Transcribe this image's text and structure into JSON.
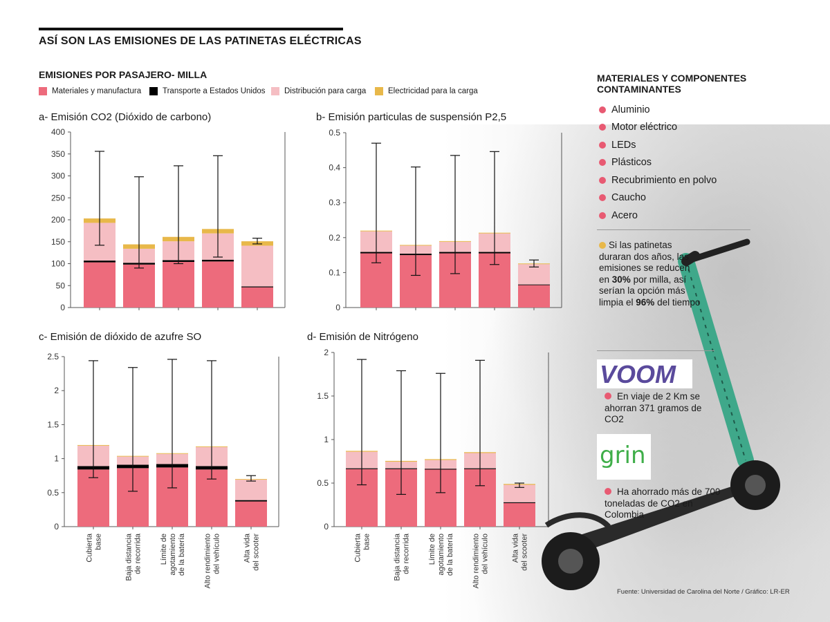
{
  "header": {
    "title": "ASÍ SON LAS EMISIONES DE LAS PATINETAS ELÉCTRICAS",
    "subtitle": "EMISIONES POR PASAJERO- MILLA"
  },
  "legend": [
    {
      "label": "Materiales y manufactura",
      "color": "#ed6b7c"
    },
    {
      "label": "Transporte a Estados Unidos",
      "color": "#000000"
    },
    {
      "label": "Distribución para carga",
      "color": "#f5bec3"
    },
    {
      "label": "Electricidad para la carga",
      "color": "#e8b84a"
    }
  ],
  "chart_data": [
    {
      "type": "bar",
      "stacked": true,
      "title": "a- Emisión CO2 (Dióxido de carbono)",
      "ylim": [
        0,
        400
      ],
      "yticks": [
        "0",
        "50",
        "100",
        "150",
        "200",
        "250",
        "300",
        "350",
        "400"
      ],
      "categories": [
        "Cubierta base",
        "Baja distancia de recorrida",
        "Límite de agotamiento de la batería",
        "Alto rendimiento del vehículo",
        "Alta vida del scooter"
      ],
      "series": [
        {
          "name": "Materiales y manufactura",
          "values": [
            103,
            98,
            104,
            105,
            46
          ]
        },
        {
          "name": "Transporte a Estados Unidos",
          "values": [
            4,
            4,
            4,
            4,
            2
          ]
        },
        {
          "name": "Distribución para carga",
          "values": [
            86,
            32,
            43,
            60,
            93
          ]
        },
        {
          "name": "Electricidad para la carga",
          "values": [
            10,
            10,
            10,
            10,
            10
          ]
        }
      ],
      "error_bars": [
        [
          142,
          356
        ],
        [
          90,
          298
        ],
        [
          100,
          323
        ],
        [
          115,
          346
        ],
        [
          145,
          158
        ]
      ]
    },
    {
      "type": "bar",
      "stacked": true,
      "title": "b- Emisión particulas de suspensión P2,5",
      "ylim": [
        0,
        0.5
      ],
      "yticks": [
        "0",
        "0.1",
        "0.2",
        "0.3",
        "0.4",
        "0.5"
      ],
      "categories": [
        "Cubierta base",
        "Baja distancia de recorrida",
        "Límite de agotamiento de la batería",
        "Alto rendimiento del vehículo",
        "Alta vida del scooter"
      ],
      "series": [
        {
          "name": "Materiales y manufactura",
          "values": [
            0.155,
            0.15,
            0.155,
            0.155,
            0.064
          ]
        },
        {
          "name": "Transporte a Estados Unidos",
          "values": [
            0.004,
            0.004,
            0.004,
            0.004,
            0.002
          ]
        },
        {
          "name": "Distribución para carga",
          "values": [
            0.059,
            0.023,
            0.029,
            0.053,
            0.058
          ]
        },
        {
          "name": "Electricidad para la carga",
          "values": [
            0.002,
            0.002,
            0.002,
            0.002,
            0.002
          ]
        }
      ],
      "error_bars": [
        [
          0.128,
          0.47
        ],
        [
          0.092,
          0.402
        ],
        [
          0.097,
          0.435
        ],
        [
          0.123,
          0.446
        ],
        [
          0.116,
          0.136
        ]
      ]
    },
    {
      "type": "bar",
      "stacked": true,
      "title": "c- Emisión de dióxido de azufre SO",
      "ylim": [
        0,
        2.5
      ],
      "yticks": [
        "0",
        "0.5",
        "1",
        "1.5",
        "2",
        "2.5"
      ],
      "categories": [
        "Cubierta base",
        "Baja distancia de recorrida",
        "Límite de agotamiento de la batería",
        "Alto rendimiento del vehículo",
        "Alta vida del scooter"
      ],
      "series": [
        {
          "name": "Materiales y manufactura",
          "values": [
            0.84,
            0.86,
            0.87,
            0.84,
            0.37
          ]
        },
        {
          "name": "Transporte a Estados Unidos",
          "values": [
            0.05,
            0.05,
            0.05,
            0.05,
            0.02
          ]
        },
        {
          "name": "Distribución para carga",
          "values": [
            0.3,
            0.12,
            0.15,
            0.28,
            0.3
          ]
        },
        {
          "name": "Electricidad para la carga",
          "values": [
            0.01,
            0.01,
            0.01,
            0.01,
            0.01
          ]
        }
      ],
      "error_bars": [
        [
          0.72,
          2.44
        ],
        [
          0.52,
          2.34
        ],
        [
          0.57,
          2.46
        ],
        [
          0.7,
          2.44
        ],
        [
          0.67,
          0.75
        ]
      ]
    },
    {
      "type": "bar",
      "stacked": true,
      "title": "d- Emisión de Nitrógeno",
      "ylim": [
        0,
        2
      ],
      "yticks": [
        "0",
        "0.5",
        "1",
        "1.5",
        "2"
      ],
      "categories": [
        "Cubierta base",
        "Baja distancia de recorrida",
        "Límite de agotamiento de la batería",
        "Alto rendimiento del vehículo",
        "Alta vida del scooter"
      ],
      "series": [
        {
          "name": "Materiales y manufactura",
          "values": [
            0.66,
            0.66,
            0.655,
            0.66,
            0.27
          ]
        },
        {
          "name": "Transporte a Estados Unidos",
          "values": [
            0.01,
            0.01,
            0.01,
            0.01,
            0.01
          ]
        },
        {
          "name": "Distribución para carga",
          "values": [
            0.19,
            0.075,
            0.1,
            0.175,
            0.2
          ]
        },
        {
          "name": "Electricidad para la carga",
          "values": [
            0.01,
            0.01,
            0.01,
            0.01,
            0.01
          ]
        }
      ],
      "error_bars": [
        [
          0.48,
          1.92
        ],
        [
          0.37,
          1.79
        ],
        [
          0.39,
          1.76
        ],
        [
          0.47,
          1.91
        ],
        [
          0.45,
          0.5
        ]
      ]
    }
  ],
  "sidebar": {
    "title_line1": "MATERIALES Y COMPONENTES",
    "title_line2": "CONTAMINANTES",
    "materials": [
      "Aluminio",
      "Motor eléctrico",
      "LEDs",
      "Plásticos",
      "Recubrimiento en polvo",
      "Caucho",
      "Acero"
    ],
    "note_a": "Si las patinetas duraran dos años, las emisiones se reducen en ",
    "note_pct1": "30%",
    "note_b": " por milla, así serían la opción más limpia el ",
    "note_pct2": "96%",
    "note_c": " del tiempo",
    "voom_logo": "VOOM",
    "voom_text": "En viaje de 2 Km se ahorran 371 gramos de CO2",
    "grin_logo": "grin",
    "grin_text": "Ha ahorrado más de 700 toneladas de CO2 en Colombia"
  },
  "source": "Fuente: Universidad de Carolina del Norte / Gráfico: LR-ER",
  "colors": {
    "dot": "#e85a72",
    "note_dot": "#e8b84a",
    "voom": "#5a4a9c",
    "grin": "#3fae49",
    "scooter_deck": "#2a2a2a",
    "scooter_stem": "#3fa88a"
  }
}
